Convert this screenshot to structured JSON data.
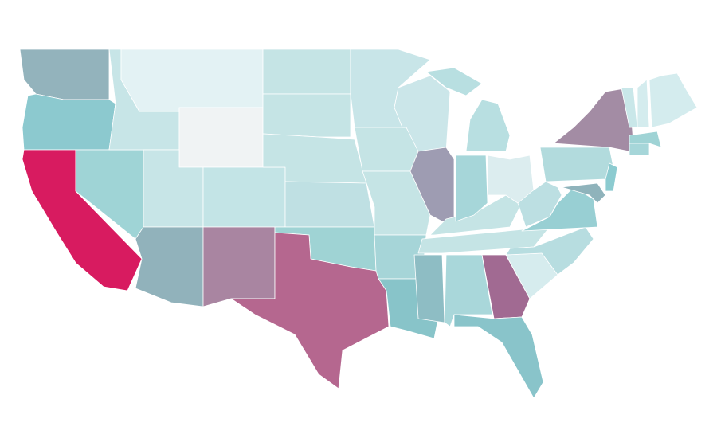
{
  "regions": [
    {
      "color": "#93b3bc"
    },
    {
      "color": "#8cc9cf"
    },
    {
      "color": "#d81b60"
    },
    {
      "color": "#9fd4d6"
    },
    {
      "color": "#c7e5e7"
    },
    {
      "color": "#e3f2f4"
    },
    {
      "color": "#f0f3f4"
    },
    {
      "color": "#c7e5e7"
    },
    {
      "color": "#91b2bb"
    },
    {
      "color": "#c3e4e6"
    },
    {
      "color": "#a985a1"
    },
    {
      "color": "#c5e4e5"
    },
    {
      "color": "#c5e4e5"
    },
    {
      "color": "#c5e4e5"
    },
    {
      "color": "#bfe0e3"
    },
    {
      "color": "#9fd3d4"
    },
    {
      "color": "#b5678f"
    },
    {
      "color": "#c8e5e8"
    },
    {
      "color": "#c5e4e5"
    },
    {
      "color": "#c5e4e5"
    },
    {
      "color": "#a6d5d8"
    },
    {
      "color": "#88c4c9"
    },
    {
      "color": "#cbe6e9"
    },
    {
      "color": "#9e9cb2"
    },
    {
      "color": "#8ebdc4"
    },
    {
      "color": "#a9d7da"
    },
    {
      "color": "#c5e4e5"
    },
    {
      "color": "#c5e4e5"
    },
    {
      "color": "#a6d6d9"
    },
    {
      "color": "#dcedef"
    },
    {
      "color": "#b8dfe1"
    },
    {
      "color": "#b8dfe1"
    },
    {
      "color": "#a16a92"
    },
    {
      "color": "#89c4ca"
    },
    {
      "color": "#d6ecee"
    },
    {
      "color": "#b7dde0"
    },
    {
      "color": "#98cfd3"
    },
    {
      "color": "#bcdfe2"
    },
    {
      "color": "#b2dbdd"
    },
    {
      "color": "#a38ca4"
    },
    {
      "color": "#8ccbd0"
    },
    {
      "color": "#8fb3bb"
    },
    {
      "color": "#a6d6d9"
    },
    {
      "color": "#9fd3d5"
    },
    {
      "color": "#c9e7e9"
    },
    {
      "color": "#d4ecee"
    },
    {
      "color": "#d4ecee"
    }
  ]
}
